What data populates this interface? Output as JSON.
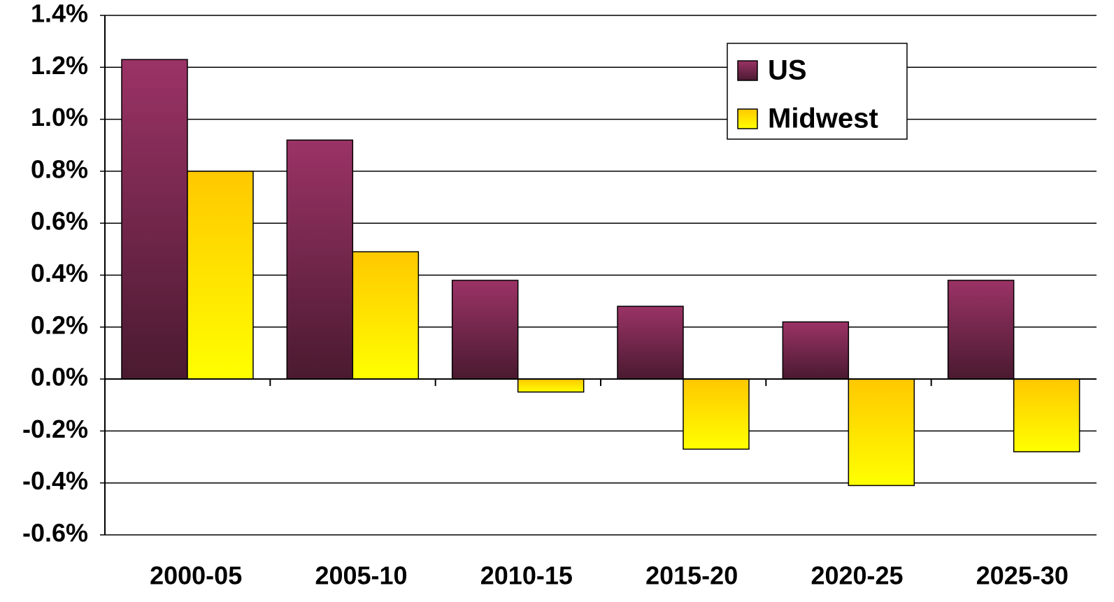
{
  "chart_data": {
    "type": "bar",
    "categories": [
      "2000-05",
      "2005-10",
      "2010-15",
      "2015-20",
      "2020-25",
      "2025-30"
    ],
    "series": [
      {
        "name": "US",
        "color": "#9b3366",
        "color_end": "#4a1a30",
        "values": [
          1.23,
          0.92,
          0.38,
          0.28,
          0.22,
          0.38
        ]
      },
      {
        "name": "Midwest",
        "color": "#ffc800",
        "color_end": "#ffff00",
        "values": [
          0.8,
          0.49,
          -0.05,
          -0.27,
          -0.41,
          -0.28
        ]
      }
    ],
    "ylim": [
      -0.6,
      1.4
    ],
    "yticks": [
      {
        "value": -0.6,
        "label": "-0.6%"
      },
      {
        "value": -0.4,
        "label": "-0.4%"
      },
      {
        "value": -0.2,
        "label": "-0.2%"
      },
      {
        "value": 0,
        "label": "0.0%"
      },
      {
        "value": 0.2,
        "label": "0.2%"
      },
      {
        "value": 0.4,
        "label": "0.4%"
      },
      {
        "value": 0.6,
        "label": "0.6%"
      },
      {
        "value": 0.8,
        "label": "0.8%"
      },
      {
        "value": 1.0,
        "label": "1.0%"
      },
      {
        "value": 1.2,
        "label": "1.2%"
      },
      {
        "value": 1.4,
        "label": "1.4%"
      }
    ],
    "grid": true,
    "legend": "upper right"
  }
}
